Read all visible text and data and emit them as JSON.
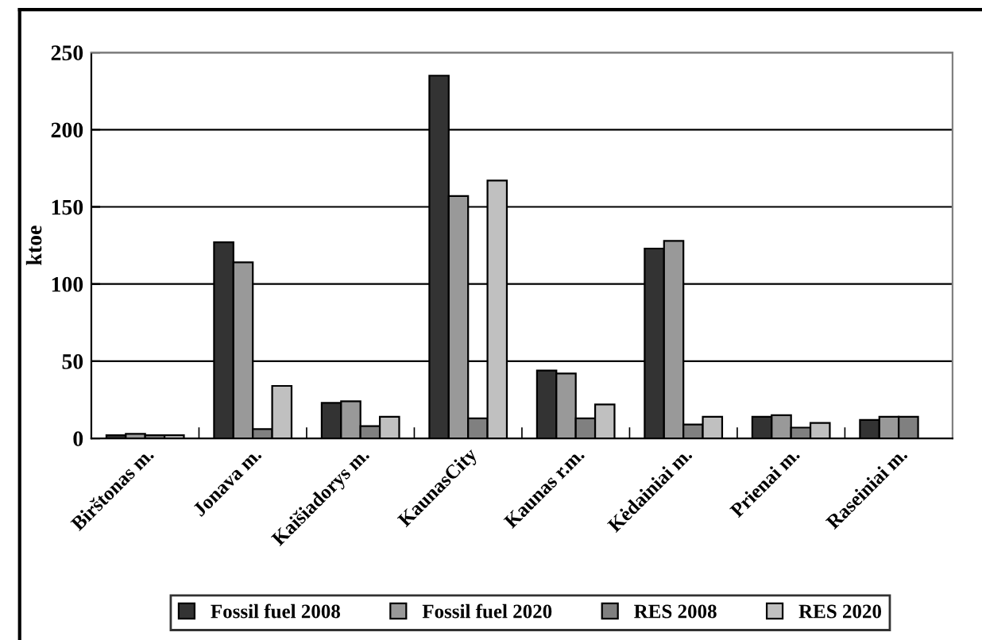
{
  "chart_data": {
    "type": "bar",
    "ylabel": "ktoe",
    "categories": [
      "Birštonas m.",
      "Jonava m.",
      "Kaišiadorys m.",
      "KaunasCity",
      "Kaunas r.m.",
      "Kėdainiai m.",
      "Prienai m.",
      "Raseiniai m."
    ],
    "series": [
      {
        "name": "Fossil fuel 2008",
        "color": "#333333",
        "values": [
          2,
          127,
          23,
          235,
          44,
          123,
          14,
          12
        ]
      },
      {
        "name": "Fossil fuel 2020",
        "color": "#999999",
        "values": [
          3,
          114,
          24,
          157,
          42,
          128,
          15,
          14
        ]
      },
      {
        "name": "RES 2008",
        "color": "#808080",
        "values": [
          2,
          6,
          8,
          13,
          13,
          9,
          7,
          14
        ]
      },
      {
        "name": "RES 2020",
        "color": "#c0c0c0",
        "values": [
          2,
          34,
          14,
          167,
          22,
          14,
          10,
          null
        ]
      }
    ],
    "ylim": [
      0,
      250
    ],
    "yticks": [
      0,
      50,
      100,
      150,
      200,
      250
    ],
    "grid": "y",
    "legend": "bottom"
  }
}
